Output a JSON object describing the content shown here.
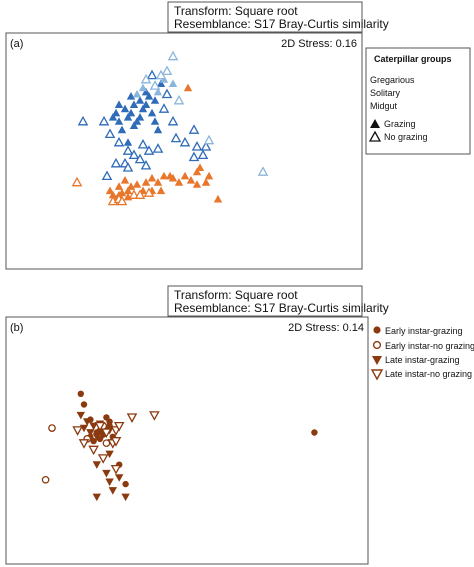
{
  "colors": {
    "gregarious": "#e8762b",
    "solitary": "#2f6bb8",
    "midgut": "#8ab6dd",
    "brown": "#8b3a10",
    "frame": "#555555"
  },
  "chart_data": [
    {
      "type": "scatter",
      "panel_label": "(a)",
      "header": [
        "Transform: Square root",
        "Resemblance: S17 Bray-Curtis similarity"
      ],
      "stress": "2D Stress: 0.16",
      "xlabel": "",
      "ylabel": "",
      "xlim": [
        0,
        100
      ],
      "ylim": [
        0,
        100
      ],
      "grid": false,
      "legend": {
        "placement": "right-outside",
        "title": "Caterpillar groups",
        "group_entries": [
          {
            "label": "Gregarious",
            "color_key": "gregarious"
          },
          {
            "label": "Solitary",
            "color_key": "solitary"
          },
          {
            "label": "Midgut",
            "color_key": "midgut"
          }
        ],
        "marker_entries": [
          {
            "label": "Grazing",
            "marker": "triangle",
            "filled": true
          },
          {
            "label": "No grazing",
            "marker": "triangle",
            "filled": false
          }
        ]
      },
      "series": [
        {
          "name": "Gregarious",
          "color_key": "gregarious",
          "marker": "triangle",
          "filled": true,
          "points": [
            [
              56,
              82
            ],
            [
              59,
              42
            ],
            [
              60,
              44
            ],
            [
              63,
              40
            ],
            [
              62,
              37
            ],
            [
              59,
              36
            ],
            [
              57,
              38
            ],
            [
              55,
              40
            ],
            [
              53,
              37
            ],
            [
              50,
              40
            ],
            [
              48,
              40
            ],
            [
              46,
              37
            ],
            [
              44,
              39
            ],
            [
              42,
              37
            ],
            [
              39,
              36
            ],
            [
              37,
              35
            ],
            [
              36,
              33
            ],
            [
              35,
              38
            ],
            [
              33,
              31
            ],
            [
              32,
              29
            ],
            [
              31,
              31
            ],
            [
              30,
              33
            ],
            [
              33,
              35
            ],
            [
              34,
              32
            ],
            [
              66,
              29
            ],
            [
              44,
              33
            ],
            [
              41,
              33
            ],
            [
              36,
              30
            ],
            [
              47,
              33
            ],
            [
              51,
              39
            ]
          ]
        },
        {
          "name": "Gregarious",
          "color_key": "gregarious",
          "marker": "triangle",
          "filled": false,
          "points": [
            [
              19,
              37
            ],
            [
              31,
              28
            ],
            [
              33,
              29
            ],
            [
              38,
              31
            ],
            [
              40,
              31
            ],
            [
              34,
              28
            ],
            [
              43,
              32
            ]
          ]
        },
        {
          "name": "Solitary",
          "color_key": "solitary",
          "marker": "triangle",
          "filled": true,
          "points": [
            [
              31,
              68
            ],
            [
              32,
              70
            ],
            [
              33,
              66
            ],
            [
              34,
              62
            ],
            [
              35,
              72
            ],
            [
              36,
              68
            ],
            [
              37,
              70
            ],
            [
              38,
              74
            ],
            [
              39,
              66
            ],
            [
              40,
              76
            ],
            [
              41,
              72
            ],
            [
              42,
              74
            ],
            [
              43,
              78
            ],
            [
              44,
              70
            ],
            [
              45,
              66
            ],
            [
              46,
              62
            ],
            [
              36,
              56
            ],
            [
              38,
              64
            ],
            [
              40,
              68
            ],
            [
              33,
              74
            ],
            [
              37,
              78
            ],
            [
              42,
              80
            ],
            [
              45,
              76
            ],
            [
              47,
              84
            ]
          ]
        },
        {
          "name": "Solitary",
          "color_key": "solitary",
          "marker": "triangle",
          "filled": false,
          "points": [
            [
              21,
              66
            ],
            [
              28,
              66
            ],
            [
              30,
              60
            ],
            [
              33,
              56
            ],
            [
              36,
              52
            ],
            [
              38,
              50
            ],
            [
              40,
              48
            ],
            [
              32,
              46
            ],
            [
              35,
              46
            ],
            [
              29,
              40
            ],
            [
              36,
              44
            ],
            [
              41,
              55
            ],
            [
              43,
              52
            ],
            [
              44,
              88
            ],
            [
              49,
              79
            ],
            [
              48,
              72
            ],
            [
              51,
              66
            ],
            [
              52,
              58
            ],
            [
              55,
              56
            ],
            [
              58,
              62
            ],
            [
              59,
              54
            ],
            [
              61,
              50
            ],
            [
              62,
              54
            ],
            [
              46,
              53
            ],
            [
              42,
              45
            ],
            [
              58,
              49
            ]
          ]
        },
        {
          "name": "Midgut",
          "color_key": "midgut",
          "marker": "triangle",
          "filled": true,
          "points": [
            [
              46,
              80
            ],
            [
              48,
              86
            ],
            [
              51,
              84
            ],
            [
              41,
              82
            ],
            [
              39,
              79
            ]
          ]
        },
        {
          "name": "Midgut",
          "color_key": "midgut",
          "marker": "triangle",
          "filled": false,
          "points": [
            [
              51,
              97
            ],
            [
              49,
              90
            ],
            [
              47,
              88
            ],
            [
              45,
              83
            ],
            [
              63,
              57
            ],
            [
              81,
              42
            ],
            [
              53,
              76
            ],
            [
              42,
              86
            ]
          ]
        }
      ]
    },
    {
      "type": "scatter",
      "panel_label": "(b)",
      "header": [
        "Transform: Square root",
        "Resemblance: S17 Bray-Curtis similarity"
      ],
      "stress": "2D Stress: 0.14",
      "xlabel": "",
      "ylabel": "",
      "xlim": [
        0,
        100
      ],
      "ylim": [
        0,
        100
      ],
      "grid": false,
      "legend": {
        "placement": "top-right",
        "entries": [
          {
            "label": "Early instar-grazing",
            "marker": "circle",
            "filled": true
          },
          {
            "label": "Early instar-no grazing",
            "marker": "circle",
            "filled": false
          },
          {
            "label": "Late instar-grazing",
            "marker": "triangle-down",
            "filled": true
          },
          {
            "label": "Late instar-no grazing",
            "marker": "triangle-down",
            "filled": false
          }
        ]
      },
      "series": [
        {
          "name": "Early instar-grazing",
          "color_key": "brown",
          "marker": "circle",
          "filled": true,
          "points": [
            [
              19,
              75
            ],
            [
              20,
              70
            ],
            [
              22,
              63
            ],
            [
              24,
              57
            ],
            [
              25,
              58
            ],
            [
              26,
              56
            ],
            [
              27,
              59
            ],
            [
              28,
              60
            ],
            [
              22,
              55
            ],
            [
              23,
              53
            ],
            [
              25,
              54
            ],
            [
              28,
              62
            ],
            [
              29,
              55
            ],
            [
              27,
              64
            ],
            [
              31,
              42
            ],
            [
              33,
              33
            ],
            [
              92,
              57
            ]
          ]
        },
        {
          "name": "Early instar-no grazing",
          "color_key": "brown",
          "marker": "circle",
          "filled": false,
          "points": [
            [
              10,
              59
            ],
            [
              8,
              35
            ],
            [
              21,
              54
            ],
            [
              26,
              60
            ],
            [
              27,
              52
            ]
          ]
        },
        {
          "name": "Late instar-grazing",
          "color_key": "brown",
          "marker": "triangle-down",
          "filled": true,
          "points": [
            [
              19,
              65
            ],
            [
              21,
              62
            ],
            [
              23,
              60
            ],
            [
              22,
              57
            ],
            [
              24,
              55
            ],
            [
              26,
              56
            ],
            [
              28,
              58
            ],
            [
              25,
              61
            ],
            [
              20,
              59
            ],
            [
              28,
              47
            ],
            [
              24,
              42
            ],
            [
              27,
              38
            ],
            [
              28,
              34
            ],
            [
              29,
              30
            ],
            [
              33,
              27
            ],
            [
              24,
              27
            ],
            [
              31,
              36
            ]
          ]
        },
        {
          "name": "Late instar-no grazing",
          "color_key": "brown",
          "marker": "triangle-down",
          "filled": false,
          "points": [
            [
              18,
              58
            ],
            [
              20,
              52
            ],
            [
              23,
              49
            ],
            [
              25,
              60
            ],
            [
              27,
              57
            ],
            [
              30,
              58
            ],
            [
              31,
              60
            ],
            [
              35,
              64
            ],
            [
              42,
              65
            ],
            [
              29,
              52
            ],
            [
              30,
              40
            ],
            [
              26,
              45
            ],
            [
              30,
              53
            ]
          ]
        }
      ]
    }
  ]
}
